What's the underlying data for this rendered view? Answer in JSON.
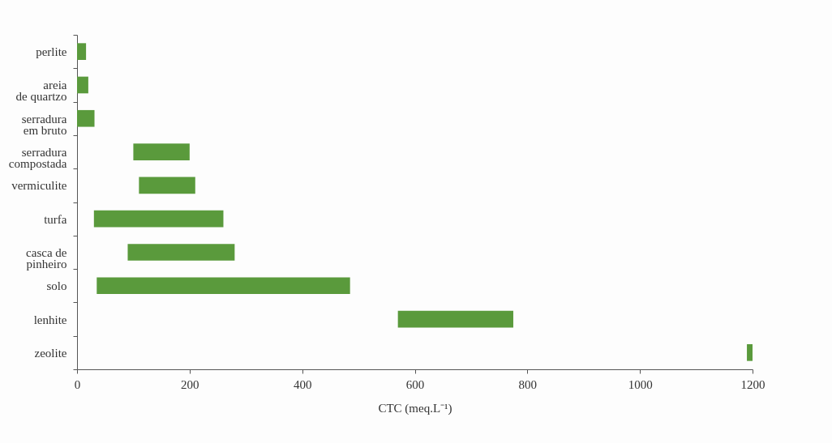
{
  "chart_data": {
    "type": "bar",
    "orientation": "horizontal",
    "xlabel": "CTC (meq.L⁻¹)",
    "categories": [
      "perlite",
      "areia\nde quartzo",
      "serradura\nem bruto",
      "serradura\ncompostada",
      "vermiculite",
      "turfa",
      "casca de\npinheiro",
      "solo",
      "lenhite",
      "zeolite"
    ],
    "base": [
      0,
      0,
      0,
      100,
      110,
      30,
      90,
      35,
      570,
      1190
    ],
    "values": [
      16,
      20,
      31,
      100,
      100,
      230,
      190,
      450,
      205,
      10
    ],
    "color": "#5a9a3c",
    "xlim": [
      0,
      1200
    ],
    "xticks": [
      0,
      200,
      400,
      600,
      800,
      1000,
      1200
    ],
    "grid": false
  }
}
